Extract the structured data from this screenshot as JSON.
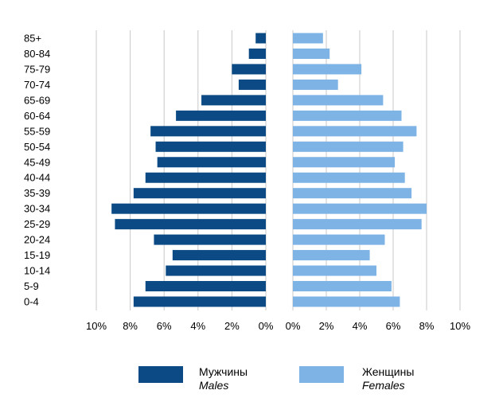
{
  "chart_data": {
    "type": "bar",
    "orientation": "horizontal",
    "layout": "population-pyramid",
    "categories": [
      "85+",
      "80-84",
      "75-79",
      "70-74",
      "65-69",
      "60-64",
      "55-59",
      "50-54",
      "45-49",
      "40-44",
      "35-39",
      "30-34",
      "25-29",
      "20-24",
      "15-19",
      "10-14",
      "5-9",
      "0-4"
    ],
    "series": [
      {
        "name": "Мужчины Males",
        "color": "#0b4a84",
        "side": "left",
        "values": [
          0.6,
          1.0,
          2.0,
          1.6,
          3.8,
          5.3,
          6.8,
          6.5,
          6.4,
          7.1,
          7.8,
          9.1,
          8.9,
          6.6,
          5.5,
          5.9,
          7.1,
          7.8
        ]
      },
      {
        "name": "Женщины Females",
        "color": "#7eb3e6",
        "side": "right",
        "values": [
          1.8,
          2.2,
          4.1,
          2.7,
          5.4,
          6.5,
          7.4,
          6.6,
          6.1,
          6.7,
          7.1,
          8.0,
          7.7,
          5.5,
          4.6,
          5.0,
          5.9,
          6.4
        ]
      }
    ],
    "xlim": [
      0,
      10
    ],
    "ticks": [
      "10%",
      "8%",
      "6%",
      "4%",
      "2%",
      "0%"
    ],
    "ticks_right": [
      "0%",
      "2%",
      "4%",
      "6%",
      "8%",
      "10%"
    ],
    "grid": true,
    "legend_position": "bottom"
  },
  "legend": {
    "males_ru": "Мужчины",
    "males_en": "Males",
    "females_ru": "Женщины",
    "females_en": "Females"
  }
}
